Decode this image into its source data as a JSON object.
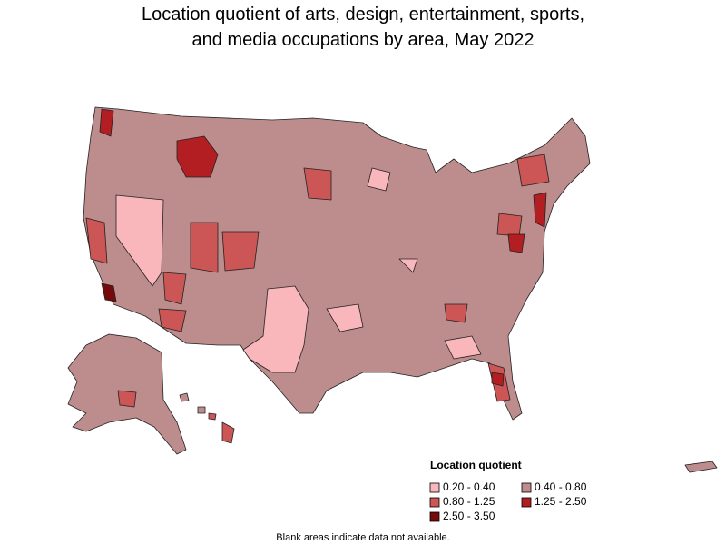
{
  "title": [
    "Location quotient of arts, design, entertainment, sports,",
    "and media occupations by area, May 2022"
  ],
  "legend": {
    "title": "Location quotient",
    "items": [
      {
        "label": "0.20 - 0.40",
        "color": "#f9b6bb"
      },
      {
        "label": "0.40 - 0.80",
        "color": "#bd8c8c"
      },
      {
        "label": "0.80 - 1.25",
        "color": "#cc5555"
      },
      {
        "label": "1.25 - 2.50",
        "color": "#b31e22"
      },
      {
        "label": "2.50 - 3.50",
        "color": "#760a0a"
      }
    ]
  },
  "footnote": "Blank areas indicate data not available."
}
